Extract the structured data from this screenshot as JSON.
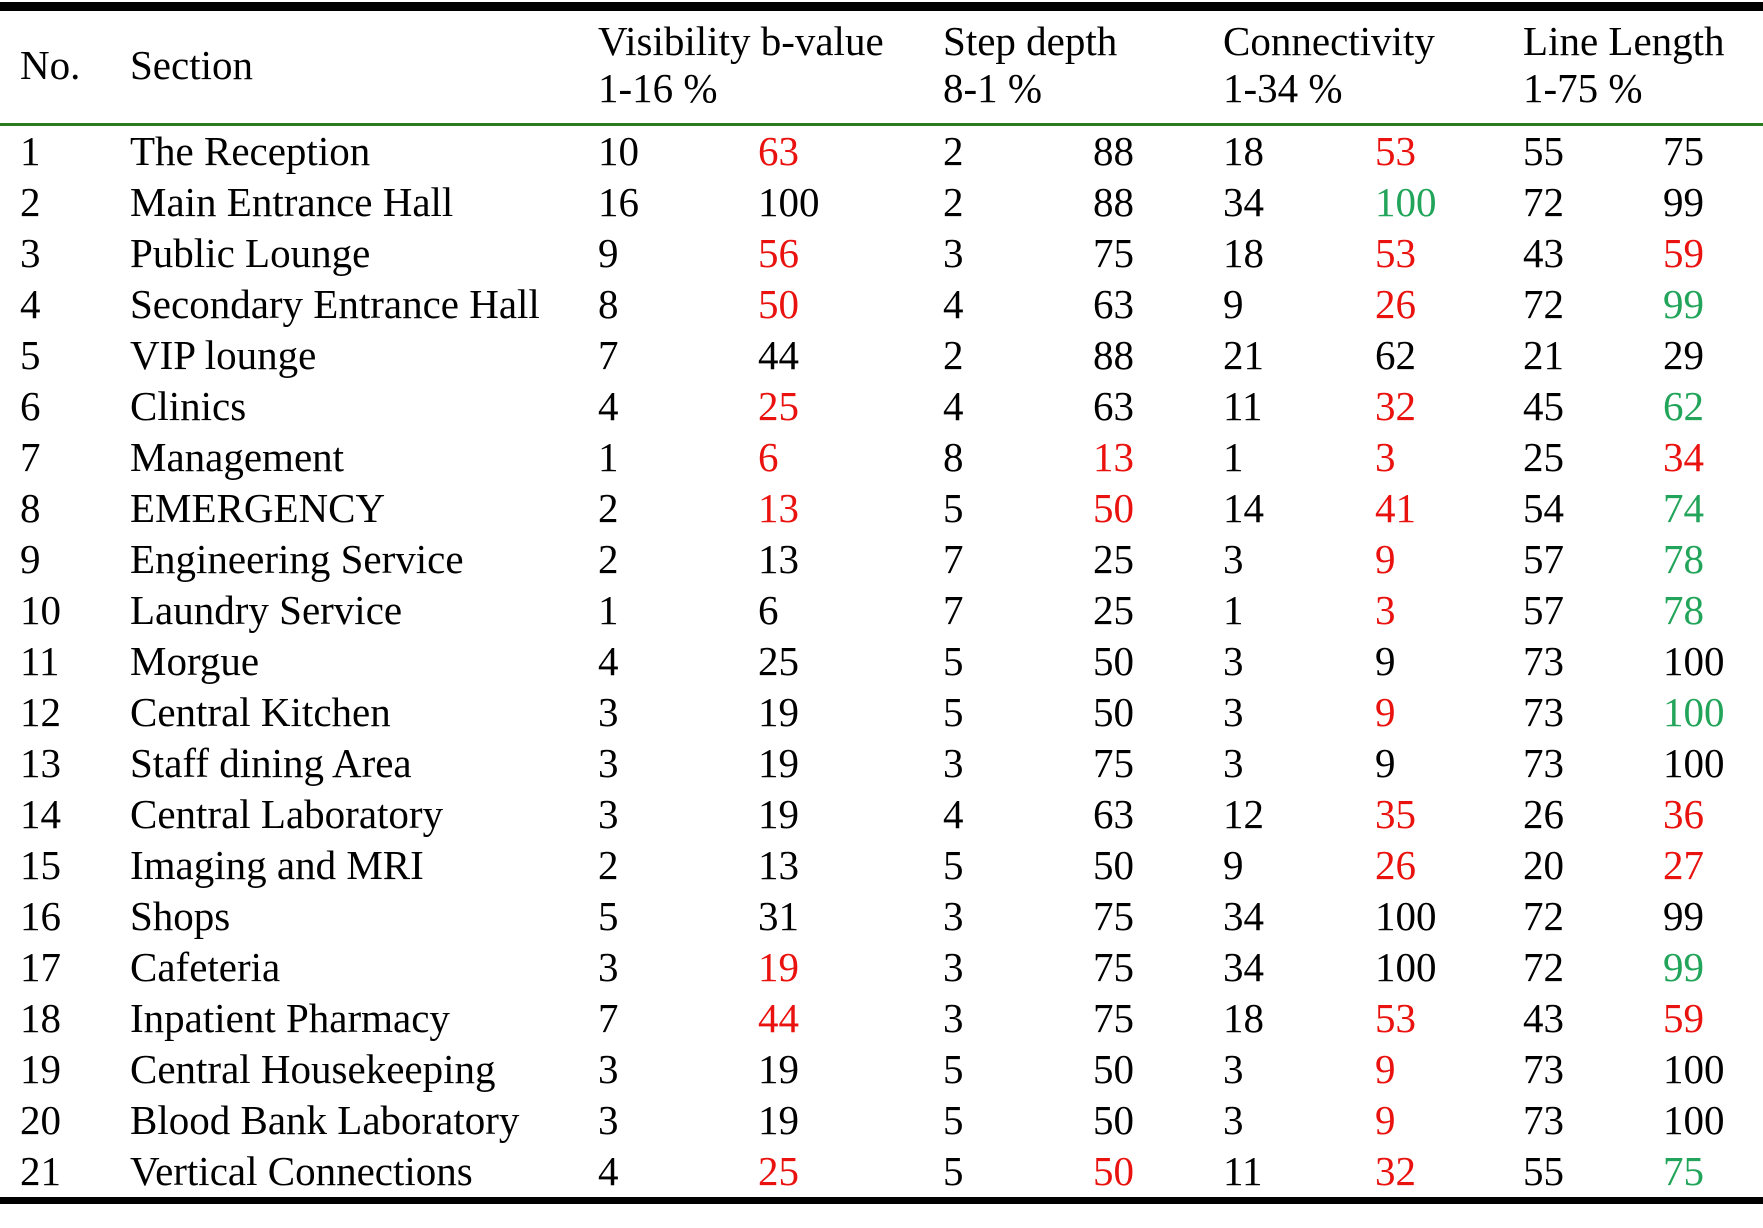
{
  "table": {
    "headers": {
      "no": "No.",
      "section": "Section",
      "visibility": {
        "line1": "Visibility b-value",
        "line2": "1-16 %"
      },
      "step_depth": {
        "line1": "Step depth",
        "line2": "8-1 %"
      },
      "connectivity": {
        "line1": "Connectivity",
        "line2": "1-34 %"
      },
      "line_length": {
        "line1": "Line Length",
        "line2": "1-75 %"
      }
    },
    "column_keys": [
      "visibility-value",
      "visibility-percent",
      "step-depth-value",
      "step-depth-percent",
      "connectivity-value",
      "connectivity-percent",
      "line-length-value",
      "line-length-percent"
    ],
    "rows": [
      {
        "no": "1",
        "section": "The Reception",
        "values": [
          "10",
          "63",
          "2",
          "88",
          "18",
          "53",
          "55",
          "75"
        ],
        "colors": [
          "k",
          "r",
          "k",
          "k",
          "k",
          "r",
          "k",
          "k"
        ]
      },
      {
        "no": "2",
        "section": "Main Entrance Hall",
        "values": [
          "16",
          "100",
          "2",
          "88",
          "34",
          "100",
          "72",
          "99"
        ],
        "colors": [
          "k",
          "k",
          "k",
          "k",
          "k",
          "g",
          "k",
          "k"
        ]
      },
      {
        "no": "3",
        "section": "Public Lounge",
        "values": [
          "9",
          "56",
          "3",
          "75",
          "18",
          "53",
          "43",
          "59"
        ],
        "colors": [
          "k",
          "r",
          "k",
          "k",
          "k",
          "r",
          "k",
          "r"
        ]
      },
      {
        "no": "4",
        "section": "Secondary Entrance Hall",
        "values": [
          "8",
          "50",
          "4",
          "63",
          "9",
          "26",
          "72",
          "99"
        ],
        "colors": [
          "k",
          "r",
          "k",
          "k",
          "k",
          "r",
          "k",
          "g"
        ]
      },
      {
        "no": "5",
        "section": "VIP lounge",
        "values": [
          "7",
          "44",
          "2",
          "88",
          "21",
          "62",
          "21",
          "29"
        ],
        "colors": [
          "k",
          "k",
          "k",
          "k",
          "k",
          "k",
          "k",
          "k"
        ]
      },
      {
        "no": "6",
        "section": "Clinics",
        "values": [
          "4",
          "25",
          "4",
          "63",
          "11",
          "32",
          "45",
          "62"
        ],
        "colors": [
          "k",
          "r",
          "k",
          "k",
          "k",
          "r",
          "k",
          "g"
        ]
      },
      {
        "no": "7",
        "section": "Management",
        "values": [
          "1",
          "6",
          "8",
          "13",
          "1",
          "3",
          "25",
          "34"
        ],
        "colors": [
          "k",
          "r",
          "k",
          "r",
          "k",
          "r",
          "k",
          "r"
        ]
      },
      {
        "no": "8",
        "section": "EMERGENCY",
        "values": [
          "2",
          "13",
          "5",
          "50",
          "14",
          "41",
          "54",
          "74"
        ],
        "colors": [
          "k",
          "r",
          "k",
          "r",
          "k",
          "r",
          "k",
          "g"
        ]
      },
      {
        "no": "9",
        "section": "Engineering Service",
        "values": [
          "2",
          "13",
          "7",
          "25",
          "3",
          "9",
          "57",
          "78"
        ],
        "colors": [
          "k",
          "k",
          "k",
          "k",
          "k",
          "r",
          "k",
          "g"
        ]
      },
      {
        "no": "10",
        "section": "Laundry Service",
        "values": [
          "1",
          "6",
          "7",
          "25",
          "1",
          "3",
          "57",
          "78"
        ],
        "colors": [
          "k",
          "k",
          "k",
          "k",
          "k",
          "r",
          "k",
          "g"
        ]
      },
      {
        "no": "11",
        "section": "Morgue",
        "values": [
          "4",
          "25",
          "5",
          "50",
          "3",
          "9",
          "73",
          "100"
        ],
        "colors": [
          "k",
          "k",
          "k",
          "k",
          "k",
          "k",
          "k",
          "k"
        ]
      },
      {
        "no": "12",
        "section": "Central Kitchen",
        "values": [
          "3",
          "19",
          "5",
          "50",
          "3",
          "9",
          "73",
          "100"
        ],
        "colors": [
          "k",
          "k",
          "k",
          "k",
          "k",
          "r",
          "k",
          "g"
        ]
      },
      {
        "no": "13",
        "section": "Staff dining Area",
        "values": [
          "3",
          "19",
          "3",
          "75",
          "3",
          "9",
          "73",
          "100"
        ],
        "colors": [
          "k",
          "k",
          "k",
          "k",
          "k",
          "k",
          "k",
          "k"
        ]
      },
      {
        "no": "14",
        "section": "Central Laboratory",
        "values": [
          "3",
          "19",
          "4",
          "63",
          "12",
          "35",
          "26",
          "36"
        ],
        "colors": [
          "k",
          "k",
          "k",
          "k",
          "k",
          "r",
          "k",
          "r"
        ]
      },
      {
        "no": "15",
        "section": "Imaging and MRI",
        "values": [
          "2",
          "13",
          "5",
          "50",
          "9",
          "26",
          "20",
          "27"
        ],
        "colors": [
          "k",
          "k",
          "k",
          "k",
          "k",
          "r",
          "k",
          "r"
        ]
      },
      {
        "no": "16",
        "section": "Shops",
        "values": [
          "5",
          "31",
          "3",
          "75",
          "34",
          "100",
          "72",
          "99"
        ],
        "colors": [
          "k",
          "k",
          "k",
          "k",
          "k",
          "k",
          "k",
          "k"
        ]
      },
      {
        "no": "17",
        "section": "Cafeteria",
        "values": [
          "3",
          "19",
          "3",
          "75",
          "34",
          "100",
          "72",
          "99"
        ],
        "colors": [
          "k",
          "r",
          "k",
          "k",
          "k",
          "k",
          "k",
          "g"
        ]
      },
      {
        "no": "18",
        "section": "Inpatient Pharmacy",
        "values": [
          "7",
          "44",
          "3",
          "75",
          "18",
          "53",
          "43",
          "59"
        ],
        "colors": [
          "k",
          "r",
          "k",
          "k",
          "k",
          "r",
          "k",
          "r"
        ]
      },
      {
        "no": "19",
        "section": "Central Housekeeping",
        "values": [
          "3",
          "19",
          "5",
          "50",
          "3",
          "9",
          "73",
          "100"
        ],
        "colors": [
          "k",
          "k",
          "k",
          "k",
          "k",
          "r",
          "k",
          "k"
        ]
      },
      {
        "no": "20",
        "section": "Blood Bank Laboratory",
        "values": [
          "3",
          "19",
          "5",
          "50",
          "3",
          "9",
          "73",
          "100"
        ],
        "colors": [
          "k",
          "k",
          "k",
          "k",
          "k",
          "r",
          "k",
          "k"
        ]
      },
      {
        "no": "21",
        "section": "Vertical Connections",
        "values": [
          "4",
          "25",
          "5",
          "50",
          "11",
          "32",
          "55",
          "75"
        ],
        "colors": [
          "k",
          "r",
          "k",
          "r",
          "k",
          "r",
          "k",
          "g"
        ]
      }
    ]
  },
  "colors": {
    "black": "#000000",
    "red": "#e9120e",
    "green": "#22a55a",
    "header_rule": "#2a7d1f",
    "frame_rule": "#000000"
  }
}
